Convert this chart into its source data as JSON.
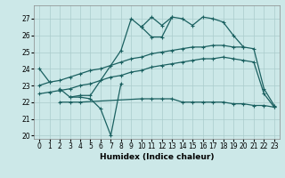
{
  "title": "",
  "xlabel": "Humidex (Indice chaleur)",
  "xlim": [
    -0.5,
    23.5
  ],
  "ylim": [
    19.8,
    27.8
  ],
  "yticks": [
    20,
    21,
    22,
    23,
    24,
    25,
    26,
    27
  ],
  "xticks": [
    0,
    1,
    2,
    3,
    4,
    5,
    6,
    7,
    8,
    9,
    10,
    11,
    12,
    13,
    14,
    15,
    16,
    17,
    18,
    19,
    20,
    21,
    22,
    23
  ],
  "bg_color": "#cce8e8",
  "grid_color": "#aacccc",
  "line_color": "#1a6060",
  "lines": [
    {
      "segments": [
        {
          "x": [
            0,
            1
          ],
          "y": [
            24.0,
            23.2
          ]
        },
        {
          "x": [
            10,
            11,
            12,
            13,
            14,
            15,
            16,
            17,
            18,
            19,
            20
          ],
          "y": [
            26.5,
            27.1,
            26.6,
            27.1,
            27.0,
            26.6,
            27.1,
            27.0,
            26.8,
            26.0,
            25.3
          ]
        }
      ]
    },
    {
      "segments": [
        {
          "x": [
            2,
            3,
            4,
            5,
            8,
            9,
            10,
            11,
            12,
            13
          ],
          "y": [
            22.8,
            22.3,
            22.4,
            22.4,
            25.1,
            27.0,
            26.5,
            25.9,
            25.9,
            27.1
          ]
        }
      ]
    },
    {
      "segments": [
        {
          "x": [
            3,
            4,
            5,
            6,
            7,
            8
          ],
          "y": [
            22.3,
            22.3,
            22.2,
            21.6,
            20.0,
            23.1
          ]
        }
      ]
    },
    {
      "segments": [
        {
          "x": [
            2,
            3,
            4,
            10,
            11,
            12,
            13,
            14,
            15,
            16,
            17,
            18,
            19,
            20,
            21,
            22,
            23
          ],
          "y": [
            22.0,
            22.0,
            22.0,
            22.2,
            22.2,
            22.2,
            22.2,
            22.0,
            22.0,
            22.0,
            22.0,
            22.0,
            21.9,
            21.9,
            21.8,
            21.8,
            21.7
          ]
        }
      ]
    },
    {
      "segments": [
        {
          "x": [
            0,
            1,
            2,
            3,
            4,
            5,
            6,
            7,
            8,
            9,
            10,
            11,
            12,
            13,
            14,
            15,
            16,
            17,
            18,
            19,
            20,
            21,
            22,
            23
          ],
          "y": [
            23.0,
            23.2,
            23.3,
            23.5,
            23.7,
            23.9,
            24.0,
            24.2,
            24.4,
            24.6,
            24.7,
            24.9,
            25.0,
            25.1,
            25.2,
            25.3,
            25.3,
            25.4,
            25.4,
            25.3,
            25.3,
            25.2,
            22.8,
            21.8
          ]
        }
      ]
    },
    {
      "segments": [
        {
          "x": [
            0,
            1,
            2,
            3,
            4,
            5,
            6,
            7,
            8,
            9,
            10,
            11,
            12,
            13,
            14,
            15,
            16,
            17,
            18,
            19,
            20,
            21,
            22,
            23
          ],
          "y": [
            22.5,
            22.6,
            22.7,
            22.8,
            23.0,
            23.1,
            23.3,
            23.5,
            23.6,
            23.8,
            23.9,
            24.1,
            24.2,
            24.3,
            24.4,
            24.5,
            24.6,
            24.6,
            24.7,
            24.6,
            24.5,
            24.4,
            22.5,
            21.7
          ]
        }
      ]
    }
  ]
}
